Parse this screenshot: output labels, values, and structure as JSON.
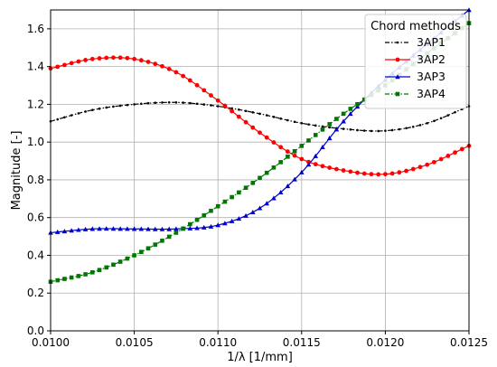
{
  "chart_data": {
    "type": "line",
    "title": "",
    "xlabel": "1/λ [1/mm]",
    "ylabel": "Magnitude [-]",
    "xlim": [
      0.01,
      0.0125
    ],
    "ylim": [
      0.0,
      1.7
    ],
    "xticks": [
      "0.0100",
      "0.0105",
      "0.0110",
      "0.0115",
      "0.0120",
      "0.0125"
    ],
    "yticks": [
      "0.0",
      "0.2",
      "0.4",
      "0.6",
      "0.8",
      "1.0",
      "1.2",
      "1.4",
      "1.6"
    ],
    "grid": true,
    "legend": {
      "title": "Chord methods",
      "position": "top-right"
    },
    "x": [
      0.01,
      0.01025,
      0.0105,
      0.01075,
      0.011,
      0.01125,
      0.0115,
      0.01175,
      0.012,
      0.01225,
      0.0125
    ],
    "series": [
      {
        "name": "3AP1",
        "color": "#000000",
        "marker": "dot",
        "dash": "dashdot",
        "values": [
          1.11,
          1.17,
          1.2,
          1.21,
          1.19,
          1.15,
          1.1,
          1.07,
          1.06,
          1.1,
          1.19
        ]
      },
      {
        "name": "3AP2",
        "color": "#ff0000",
        "marker": "circle",
        "dash": "solid",
        "values": [
          1.39,
          1.44,
          1.44,
          1.37,
          1.22,
          1.05,
          0.91,
          0.85,
          0.83,
          0.88,
          0.98
        ]
      },
      {
        "name": "3AP3",
        "color": "#0000cc",
        "marker": "triangle",
        "dash": "solid",
        "values": [
          0.52,
          0.54,
          0.54,
          0.54,
          0.56,
          0.65,
          0.84,
          1.11,
          1.33,
          1.52,
          1.7
        ]
      },
      {
        "name": "3AP4",
        "color": "#007700",
        "marker": "square",
        "dash": "dashdot",
        "values": [
          0.26,
          0.31,
          0.4,
          0.52,
          0.66,
          0.81,
          0.98,
          1.15,
          1.3,
          1.47,
          1.63
        ]
      }
    ]
  }
}
